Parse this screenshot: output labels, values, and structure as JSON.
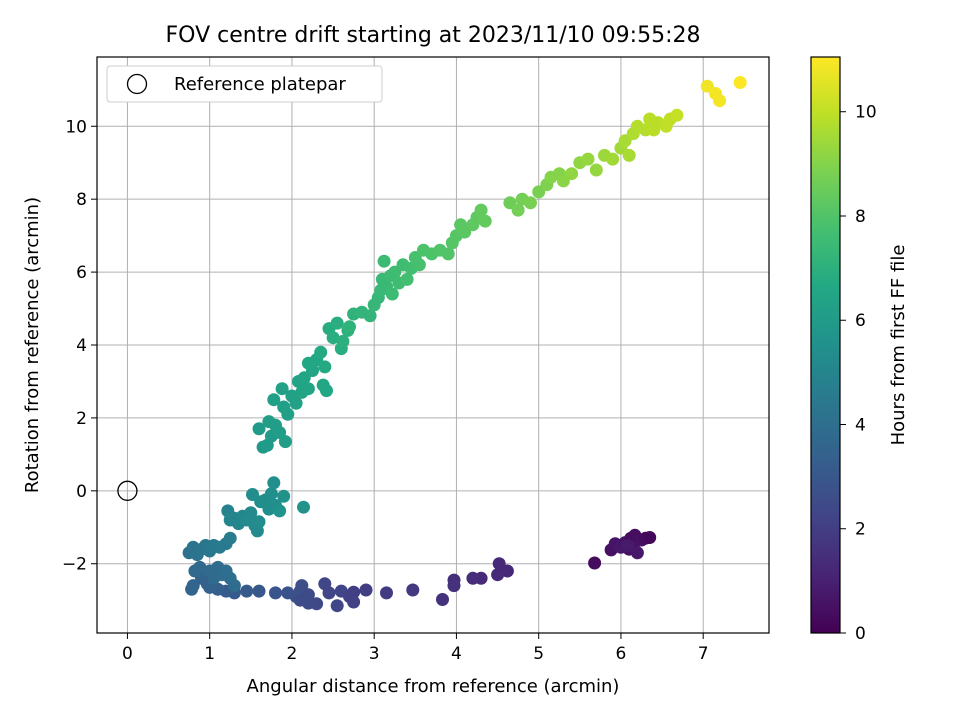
{
  "chart_data": {
    "type": "scatter",
    "title": "FOV centre drift starting at 2023/11/10 09:55:28",
    "xlabel": "Angular distance from reference (arcmin)",
    "ylabel": "Rotation from reference (arcmin)",
    "xlim": [
      -0.37,
      7.8
    ],
    "ylim": [
      -3.9,
      11.9
    ],
    "x_ticks": [
      0,
      1,
      2,
      3,
      4,
      5,
      6,
      7
    ],
    "y_ticks": [
      -2,
      0,
      2,
      4,
      6,
      8,
      10
    ],
    "y_tick_labels": [
      "−2",
      "0",
      "2",
      "4",
      "6",
      "8",
      "10"
    ],
    "grid": true,
    "legend": {
      "position": "top-left",
      "entries": [
        "Reference platepar"
      ]
    },
    "colorbar": {
      "label": "Hours from first FF file",
      "colormap": "viridis",
      "range": [
        0,
        11.05
      ],
      "ticks": [
        0,
        2,
        4,
        6,
        8,
        10
      ]
    },
    "reference_point": {
      "x": 0,
      "y": 0
    },
    "series": [
      {
        "points": [
          [
            5.68,
            -1.98,
            0.3
          ],
          [
            5.88,
            -1.62,
            0.5
          ],
          [
            5.93,
            -1.45,
            0.6
          ],
          [
            6.0,
            -1.55,
            0.7
          ],
          [
            6.05,
            -1.42,
            0.6
          ],
          [
            6.1,
            -1.6,
            0.5
          ],
          [
            6.12,
            -1.3,
            0.4
          ],
          [
            6.15,
            -1.55,
            0.6
          ],
          [
            6.17,
            -1.22,
            0.4
          ],
          [
            6.2,
            -1.7,
            0.7
          ],
          [
            6.25,
            -1.35,
            0.5
          ],
          [
            6.3,
            -1.3,
            0.3
          ],
          [
            6.35,
            -1.28,
            0.2
          ],
          [
            6.08,
            -1.5,
            0.8
          ],
          [
            4.62,
            -2.2,
            1.2
          ],
          [
            4.5,
            -2.3,
            1.3
          ],
          [
            4.52,
            -2.0,
            1.2
          ],
          [
            4.3,
            -2.4,
            1.3
          ],
          [
            4.2,
            -2.4,
            1.4
          ],
          [
            3.97,
            -2.45,
            1.5
          ],
          [
            3.97,
            -2.6,
            1.6
          ],
          [
            3.83,
            -2.98,
            1.6
          ],
          [
            3.47,
            -2.72,
            1.8
          ],
          [
            3.15,
            -2.8,
            1.9
          ],
          [
            2.9,
            -2.72,
            2.0
          ],
          [
            2.75,
            -2.78,
            2.0
          ],
          [
            2.75,
            -3.05,
            2.1
          ],
          [
            2.7,
            -2.9,
            2.1
          ],
          [
            2.6,
            -2.75,
            2.2
          ],
          [
            2.45,
            -2.8,
            2.3
          ],
          [
            2.4,
            -2.55,
            2.3
          ],
          [
            2.3,
            -3.1,
            2.4
          ],
          [
            2.2,
            -3.08,
            2.5
          ],
          [
            2.55,
            -3.15,
            2.3
          ],
          [
            2.12,
            -2.6,
            2.6
          ],
          [
            2.1,
            -2.75,
            2.6
          ],
          [
            2.05,
            -2.9,
            2.7
          ],
          [
            2.1,
            -3.0,
            2.5
          ],
          [
            2.2,
            -2.85,
            2.5
          ],
          [
            1.95,
            -2.8,
            2.8
          ],
          [
            1.8,
            -2.8,
            2.9
          ],
          [
            1.6,
            -2.75,
            3.0
          ],
          [
            1.45,
            -2.75,
            3.1
          ],
          [
            1.3,
            -2.8,
            3.1
          ],
          [
            1.2,
            -2.75,
            3.2
          ],
          [
            1.1,
            -2.7,
            3.3
          ],
          [
            1.0,
            -2.65,
            3.4
          ],
          [
            0.97,
            -2.55,
            3.5
          ],
          [
            0.9,
            -2.4,
            3.5
          ],
          [
            0.8,
            -2.6,
            3.6
          ],
          [
            0.78,
            -2.7,
            3.6
          ],
          [
            0.82,
            -2.2,
            3.7
          ],
          [
            0.88,
            -2.1,
            3.7
          ],
          [
            1.0,
            -2.2,
            3.8
          ],
          [
            1.05,
            -2.4,
            3.8
          ],
          [
            1.1,
            -2.1,
            3.9
          ],
          [
            1.15,
            -2.3,
            3.9
          ],
          [
            1.2,
            -2.2,
            4.0
          ],
          [
            1.25,
            -2.4,
            4.0
          ],
          [
            1.3,
            -2.6,
            3.9
          ],
          [
            0.75,
            -1.7,
            4.1
          ],
          [
            0.8,
            -1.55,
            4.2
          ],
          [
            0.85,
            -1.75,
            4.2
          ],
          [
            0.9,
            -1.6,
            4.3
          ],
          [
            0.95,
            -1.5,
            4.3
          ],
          [
            1.0,
            -1.65,
            4.4
          ],
          [
            1.05,
            -1.5,
            4.4
          ],
          [
            1.12,
            -1.55,
            4.5
          ],
          [
            1.2,
            -1.45,
            4.5
          ],
          [
            1.25,
            -1.3,
            4.6
          ],
          [
            1.22,
            -0.55,
            4.9
          ],
          [
            1.25,
            -0.8,
            5.0
          ],
          [
            1.3,
            -0.75,
            5.0
          ],
          [
            1.35,
            -0.9,
            5.1
          ],
          [
            1.4,
            -0.7,
            5.1
          ],
          [
            1.45,
            -0.8,
            5.2
          ],
          [
            1.5,
            -0.6,
            5.2
          ],
          [
            1.52,
            -0.1,
            5.3
          ],
          [
            1.55,
            -0.95,
            5.2
          ],
          [
            1.58,
            -1.1,
            5.2
          ],
          [
            1.6,
            -0.85,
            5.3
          ],
          [
            1.62,
            -0.3,
            5.4
          ],
          [
            1.68,
            -0.25,
            5.4
          ],
          [
            1.72,
            -0.5,
            5.4
          ],
          [
            1.78,
            0.22,
            5.5
          ],
          [
            1.75,
            -0.08,
            5.5
          ],
          [
            1.8,
            -0.4,
            5.5
          ],
          [
            1.85,
            -0.55,
            5.6
          ],
          [
            1.9,
            -0.15,
            5.6
          ],
          [
            2.14,
            -0.45,
            5.6
          ],
          [
            1.65,
            1.2,
            5.9
          ],
          [
            1.7,
            1.25,
            6.0
          ],
          [
            1.75,
            1.5,
            6.0
          ],
          [
            1.8,
            1.8,
            6.1
          ],
          [
            1.85,
            1.6,
            6.1
          ],
          [
            1.6,
            1.7,
            6.0
          ],
          [
            1.72,
            1.9,
            6.1
          ],
          [
            1.92,
            1.35,
            6.1
          ],
          [
            1.78,
            2.5,
            6.2
          ],
          [
            1.9,
            2.3,
            6.2
          ],
          [
            1.88,
            2.8,
            6.3
          ],
          [
            1.95,
            2.1,
            6.2
          ],
          [
            2.0,
            2.6,
            6.3
          ],
          [
            2.05,
            2.4,
            6.3
          ],
          [
            2.08,
            3.0,
            6.4
          ],
          [
            2.12,
            2.7,
            6.4
          ],
          [
            2.15,
            3.1,
            6.5
          ],
          [
            2.2,
            2.8,
            6.5
          ],
          [
            2.25,
            3.3,
            6.5
          ],
          [
            2.2,
            3.5,
            6.6
          ],
          [
            2.3,
            3.6,
            6.6
          ],
          [
            2.35,
            3.8,
            6.7
          ],
          [
            2.4,
            3.4,
            6.7
          ],
          [
            2.38,
            2.9,
            6.6
          ],
          [
            2.42,
            2.75,
            6.6
          ],
          [
            2.45,
            4.45,
            6.8
          ],
          [
            2.5,
            4.2,
            6.9
          ],
          [
            2.55,
            4.6,
            6.9
          ],
          [
            2.6,
            3.9,
            6.9
          ],
          [
            2.62,
            4.1,
            7.0
          ],
          [
            2.68,
            4.4,
            7.0
          ],
          [
            2.7,
            4.5,
            7.1
          ],
          [
            2.75,
            4.85,
            7.1
          ],
          [
            2.85,
            4.9,
            7.2
          ],
          [
            2.95,
            4.8,
            7.2
          ],
          [
            3.0,
            5.1,
            7.3
          ],
          [
            3.05,
            5.3,
            7.3
          ],
          [
            3.08,
            5.5,
            7.4
          ],
          [
            3.1,
            5.8,
            7.4
          ],
          [
            3.12,
            6.3,
            7.5
          ],
          [
            3.15,
            5.6,
            7.4
          ],
          [
            3.2,
            5.9,
            7.5
          ],
          [
            3.22,
            5.4,
            7.5
          ],
          [
            3.25,
            6.0,
            7.6
          ],
          [
            3.3,
            5.7,
            7.6
          ],
          [
            3.35,
            6.2,
            7.6
          ],
          [
            3.4,
            5.8,
            7.7
          ],
          [
            3.45,
            6.1,
            7.7
          ],
          [
            3.5,
            6.4,
            7.8
          ],
          [
            3.55,
            6.2,
            7.8
          ],
          [
            3.6,
            6.6,
            7.9
          ],
          [
            3.7,
            6.5,
            7.9
          ],
          [
            3.8,
            6.6,
            8.0
          ],
          [
            3.9,
            6.5,
            8.0
          ],
          [
            3.95,
            6.8,
            8.1
          ],
          [
            4.0,
            7.0,
            8.1
          ],
          [
            4.05,
            7.3,
            8.2
          ],
          [
            4.1,
            7.1,
            8.2
          ],
          [
            4.2,
            7.3,
            8.3
          ],
          [
            4.25,
            7.5,
            8.3
          ],
          [
            4.3,
            7.7,
            8.4
          ],
          [
            4.35,
            7.4,
            8.4
          ],
          [
            4.65,
            7.9,
            8.6
          ],
          [
            4.75,
            7.7,
            8.7
          ],
          [
            4.8,
            8.0,
            8.7
          ],
          [
            4.9,
            7.9,
            8.8
          ],
          [
            5.0,
            8.2,
            8.8
          ],
          [
            5.1,
            8.4,
            8.9
          ],
          [
            5.15,
            8.6,
            9.0
          ],
          [
            5.25,
            8.7,
            9.0
          ],
          [
            5.3,
            8.5,
            9.1
          ],
          [
            5.4,
            8.7,
            9.2
          ],
          [
            5.5,
            9.0,
            9.2
          ],
          [
            5.6,
            9.1,
            9.3
          ],
          [
            5.7,
            8.8,
            9.3
          ],
          [
            5.8,
            9.2,
            9.4
          ],
          [
            5.9,
            9.1,
            9.5
          ],
          [
            6.0,
            9.4,
            9.5
          ],
          [
            6.1,
            9.2,
            9.6
          ],
          [
            6.05,
            9.6,
            9.6
          ],
          [
            6.15,
            9.8,
            9.7
          ],
          [
            6.2,
            10.0,
            9.8
          ],
          [
            6.3,
            9.9,
            9.8
          ],
          [
            6.35,
            10.2,
            9.9
          ],
          [
            6.45,
            10.1,
            9.9
          ],
          [
            6.55,
            10.0,
            10.0
          ],
          [
            6.6,
            10.2,
            10.0
          ],
          [
            6.68,
            10.3,
            10.1
          ],
          [
            6.4,
            9.9,
            9.9
          ],
          [
            7.05,
            11.1,
            10.8
          ],
          [
            7.15,
            10.9,
            10.9
          ],
          [
            7.2,
            10.7,
            10.9
          ],
          [
            7.45,
            11.2,
            11.05
          ]
        ]
      }
    ]
  }
}
